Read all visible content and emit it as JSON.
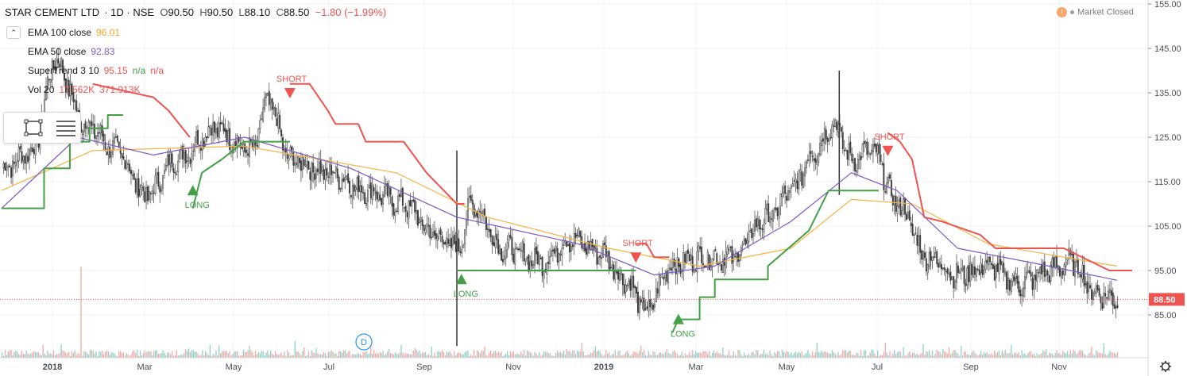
{
  "header": {
    "symbol": "STAR CEMENT LTD",
    "interval": "1D",
    "exchange": "NSE",
    "open_label": "O",
    "open": "90.50",
    "high_label": "H",
    "high": "90.50",
    "low_label": "L",
    "low": "88.10",
    "close_label": "C",
    "close": "88.50",
    "change": "−1.80 (−1.99%)",
    "separator": "·"
  },
  "market_status": {
    "icon": "warning-icon",
    "glyph": "!",
    "label": "Market Closed"
  },
  "indicators": [
    {
      "name": "EMA 100 close",
      "values": [
        "96.01"
      ],
      "color": "#f5a623"
    },
    {
      "name": "EMA 50 close",
      "values": [
        "92.83"
      ],
      "color": "#7e57c2"
    },
    {
      "name": "SuperTrend 3 10",
      "values": [
        "95.15",
        "n/a",
        "n/a"
      ],
      "color": "#ef5350"
    },
    {
      "name": "Vol 20",
      "values": [
        "17.562K",
        "371.913K"
      ],
      "color": "#ef5350"
    }
  ],
  "toolbar": {
    "icons": [
      "rectangle-select-icon",
      "object-tree-icon"
    ]
  },
  "colors": {
    "up": "#26a69a",
    "down": "#ef5350",
    "candle_body": "#4a4a4a",
    "ema100": "#f5b342",
    "ema50": "#7e57c2",
    "supertrend_up": "#43a047",
    "supertrend_down": "#ef5350",
    "price_line": "#ef5350"
  },
  "chart_data": {
    "type": "candlestick",
    "price_axis": {
      "ticks": [
        "155.00",
        "145.00",
        "135.00",
        "125.00",
        "115.00",
        "105.00",
        "95.00",
        "85.00"
      ],
      "min": 78,
      "max": 155
    },
    "time_axis": {
      "ticks": [
        "2018",
        "Mar",
        "May",
        "Jul",
        "Sep",
        "Nov",
        "2019",
        "Mar",
        "May",
        "Jul",
        "Sep",
        "Nov"
      ]
    },
    "last_price": "88.50",
    "anchors": [
      {
        "i": 0,
        "p": 118
      },
      {
        "i": 20,
        "p": 122
      },
      {
        "i": 35,
        "p": 142
      },
      {
        "i": 55,
        "p": 128
      },
      {
        "i": 75,
        "p": 122
      },
      {
        "i": 95,
        "p": 112
      },
      {
        "i": 115,
        "p": 120
      },
      {
        "i": 140,
        "p": 127
      },
      {
        "i": 165,
        "p": 122
      },
      {
        "i": 175,
        "p": 133
      },
      {
        "i": 190,
        "p": 120
      },
      {
        "i": 215,
        "p": 117
      },
      {
        "i": 240,
        "p": 113
      },
      {
        "i": 265,
        "p": 110
      },
      {
        "i": 285,
        "p": 103
      },
      {
        "i": 300,
        "p": 100
      },
      {
        "i": 310,
        "p": 110
      },
      {
        "i": 330,
        "p": 100
      },
      {
        "i": 355,
        "p": 97
      },
      {
        "i": 375,
        "p": 102
      },
      {
        "i": 395,
        "p": 99
      },
      {
        "i": 410,
        "p": 93
      },
      {
        "i": 425,
        "p": 86
      },
      {
        "i": 440,
        "p": 96
      },
      {
        "i": 460,
        "p": 98
      },
      {
        "i": 480,
        "p": 98
      },
      {
        "i": 505,
        "p": 107
      },
      {
        "i": 520,
        "p": 113
      },
      {
        "i": 535,
        "p": 122
      },
      {
        "i": 548,
        "p": 128
      },
      {
        "i": 560,
        "p": 120
      },
      {
        "i": 573,
        "p": 122
      },
      {
        "i": 590,
        "p": 110
      },
      {
        "i": 610,
        "p": 98
      },
      {
        "i": 630,
        "p": 94
      },
      {
        "i": 650,
        "p": 96
      },
      {
        "i": 670,
        "p": 92
      },
      {
        "i": 690,
        "p": 95
      },
      {
        "i": 705,
        "p": 97
      },
      {
        "i": 720,
        "p": 90
      },
      {
        "i": 735,
        "p": 88.5
      }
    ],
    "ema100": [
      {
        "i": 0,
        "p": 113
      },
      {
        "i": 60,
        "p": 122
      },
      {
        "i": 160,
        "p": 123
      },
      {
        "i": 260,
        "p": 117
      },
      {
        "i": 320,
        "p": 107
      },
      {
        "i": 400,
        "p": 100
      },
      {
        "i": 460,
        "p": 96
      },
      {
        "i": 520,
        "p": 100
      },
      {
        "i": 560,
        "p": 111
      },
      {
        "i": 600,
        "p": 110
      },
      {
        "i": 650,
        "p": 101
      },
      {
        "i": 700,
        "p": 98
      },
      {
        "i": 735,
        "p": 96
      }
    ],
    "ema50": [
      {
        "i": 0,
        "p": 109
      },
      {
        "i": 50,
        "p": 125
      },
      {
        "i": 100,
        "p": 121
      },
      {
        "i": 160,
        "p": 125
      },
      {
        "i": 230,
        "p": 118
      },
      {
        "i": 300,
        "p": 107
      },
      {
        "i": 380,
        "p": 101
      },
      {
        "i": 430,
        "p": 94
      },
      {
        "i": 470,
        "p": 96
      },
      {
        "i": 520,
        "p": 106
      },
      {
        "i": 560,
        "p": 117
      },
      {
        "i": 590,
        "p": 113
      },
      {
        "i": 630,
        "p": 100
      },
      {
        "i": 690,
        "p": 96
      },
      {
        "i": 735,
        "p": 92.8
      }
    ],
    "supertrend_up": [
      {
        "i": 0,
        "p": 109
      },
      {
        "i": 28,
        "p": 109
      },
      {
        "i": 28,
        "p": 118
      },
      {
        "i": 45,
        "p": 118
      },
      {
        "i": 45,
        "p": 124
      },
      {
        "i": 58,
        "p": 124
      },
      {
        "i": 58,
        "p": 127
      },
      {
        "i": 70,
        "p": 127
      },
      {
        "i": 70,
        "p": 130
      },
      {
        "i": 80,
        "p": 130
      }
    ],
    "supertrend_up2": [
      {
        "i": 126,
        "p": 109
      },
      {
        "i": 132,
        "p": 117
      },
      {
        "i": 145,
        "p": 120
      },
      {
        "i": 160,
        "p": 124
      },
      {
        "i": 190,
        "p": 124
      }
    ],
    "supertrend_up3": [
      {
        "i": 300,
        "p": 95
      },
      {
        "i": 302,
        "p": 95
      },
      {
        "i": 418,
        "p": 95
      }
    ],
    "supertrend_up4": [
      {
        "i": 442,
        "p": 81
      },
      {
        "i": 446,
        "p": 84
      },
      {
        "i": 460,
        "p": 84
      },
      {
        "i": 460,
        "p": 89
      },
      {
        "i": 470,
        "p": 89
      },
      {
        "i": 470,
        "p": 93
      },
      {
        "i": 505,
        "p": 93
      },
      {
        "i": 505,
        "p": 96
      },
      {
        "i": 532,
        "p": 104
      },
      {
        "i": 545,
        "p": 113
      },
      {
        "i": 578,
        "p": 113
      }
    ],
    "supertrend_down": [
      {
        "i": 60,
        "p": 137
      },
      {
        "i": 100,
        "p": 134
      },
      {
        "i": 110,
        "p": 131
      },
      {
        "i": 124,
        "p": 125
      }
    ],
    "supertrend_down2": [
      {
        "i": 190,
        "p": 137
      },
      {
        "i": 203,
        "p": 137
      },
      {
        "i": 215,
        "p": 131
      },
      {
        "i": 220,
        "p": 128
      },
      {
        "i": 235,
        "p": 128
      },
      {
        "i": 240,
        "p": 124
      },
      {
        "i": 265,
        "p": 124
      },
      {
        "i": 280,
        "p": 117
      },
      {
        "i": 300,
        "p": 110
      },
      {
        "i": 305,
        "p": 110
      }
    ],
    "supertrend_down3": [
      {
        "i": 418,
        "p": 101
      },
      {
        "i": 425,
        "p": 101
      },
      {
        "i": 430,
        "p": 98
      },
      {
        "i": 440,
        "p": 98
      }
    ],
    "supertrend_down4": [
      {
        "i": 584,
        "p": 126
      },
      {
        "i": 592,
        "p": 124
      },
      {
        "i": 600,
        "p": 120
      },
      {
        "i": 608,
        "p": 107
      },
      {
        "i": 620,
        "p": 106
      },
      {
        "i": 645,
        "p": 103
      },
      {
        "i": 655,
        "p": 100
      },
      {
        "i": 665,
        "p": 100
      },
      {
        "i": 700,
        "p": 100
      },
      {
        "i": 730,
        "p": 95
      },
      {
        "i": 745,
        "p": 95
      }
    ],
    "signals": [
      {
        "type": "LONG",
        "i": 126,
        "p": 113
      },
      {
        "type": "SHORT",
        "i": 190,
        "p": 135
      },
      {
        "type": "LONG",
        "i": 303,
        "p": 93
      },
      {
        "type": "SHORT",
        "i": 418,
        "p": 98
      },
      {
        "type": "LONG",
        "i": 446,
        "p": 84
      },
      {
        "type": "SHORT",
        "i": 584,
        "p": 122
      }
    ],
    "spikes": [
      {
        "i": 300,
        "low": 78,
        "high": 122
      },
      {
        "i": 552,
        "low": 112,
        "high": 140
      }
    ]
  }
}
